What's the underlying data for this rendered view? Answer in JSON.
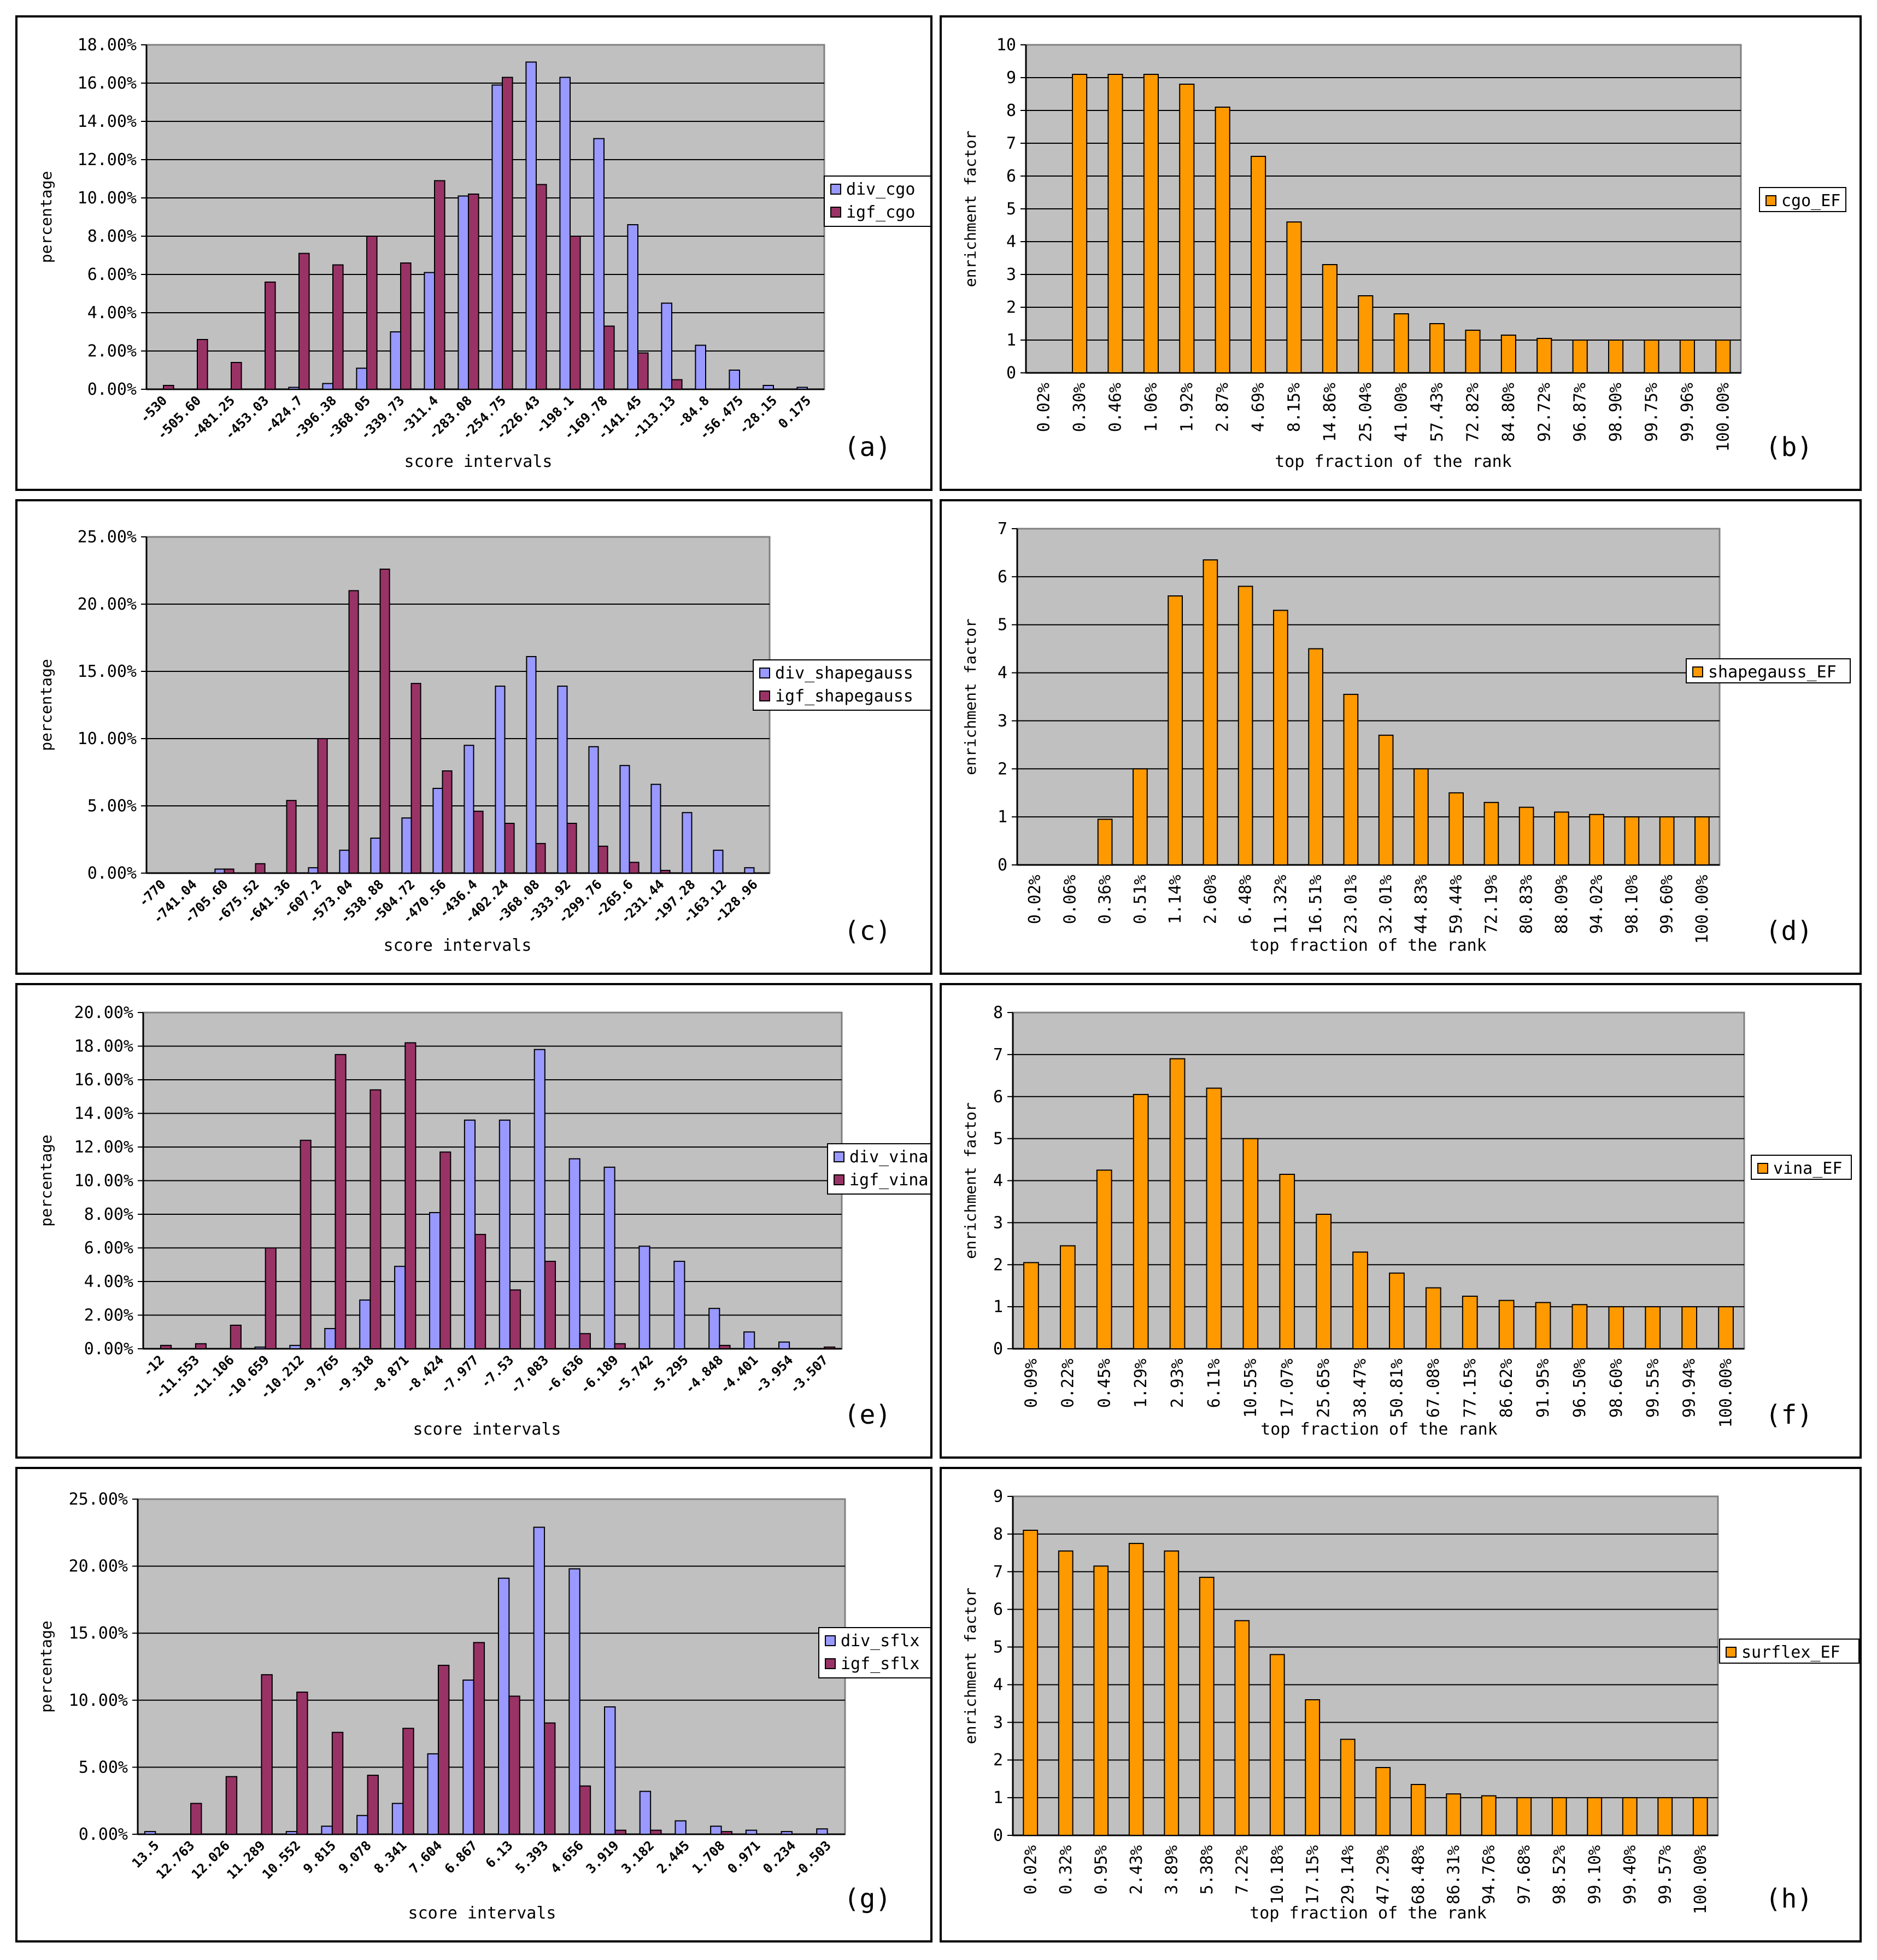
{
  "chart_data": [
    {
      "panel_label": "(a)",
      "type": "bar",
      "xlabel": "score intervals",
      "ylabel": "percentage",
      "ylim": [
        0,
        18
      ],
      "ytick_values": [
        0,
        2,
        4,
        6,
        8,
        10,
        12,
        14,
        16,
        18
      ],
      "ytick_labels": [
        "0.00%",
        "2.00%",
        "4.00%",
        "6.00%",
        "8.00%",
        "10.00%",
        "12.00%",
        "14.00%",
        "16.00%",
        "18.00%"
      ],
      "categories": [
        "-530",
        "-505.60",
        "-481.25",
        "-453.03",
        "-424.7",
        "-396.38",
        "-368.05",
        "-339.73",
        "-311.4",
        "-283.08",
        "-254.75",
        "-226.43",
        "-198.1",
        "-169.78",
        "-141.45",
        "-113.13",
        "-84.8",
        "-56.475",
        "-28.15",
        "0.175"
      ],
      "category_labels": [
        "-530",
        "-505.60",
        "-481.25",
        "-453.03",
        "-424.7",
        "-396.38",
        "-368.05",
        "-339.73",
        "-311.4",
        "-283.08",
        "-254.75",
        "-226.43",
        "-198.1",
        "-169.78",
        "-141.45",
        "-113.13",
        "-84.8",
        "-56.475",
        "-28.15",
        "0.175"
      ],
      "series": [
        {
          "name": "div_cgo",
          "color": "#9999ff",
          "values": [
            0,
            0,
            0,
            0,
            0.1,
            0.3,
            1.1,
            3.0,
            6.1,
            10.1,
            15.9,
            17.1,
            16.3,
            13.1,
            8.6,
            4.5,
            2.3,
            1.0,
            0.2,
            0.1
          ]
        },
        {
          "name": "igf_cgo",
          "color": "#993366",
          "values": [
            0.2,
            2.6,
            1.4,
            5.6,
            7.1,
            6.5,
            8.0,
            6.6,
            10.9,
            10.2,
            16.3,
            10.7,
            8.0,
            3.3,
            1.9,
            0.5,
            0,
            0,
            0,
            0
          ]
        }
      ]
    },
    {
      "panel_label": "(b)",
      "type": "bar",
      "xlabel": "top fraction of the rank",
      "ylabel": "enrichment factor",
      "ylim": [
        0,
        10
      ],
      "ytick_values": [
        0,
        1,
        2,
        3,
        4,
        5,
        6,
        7,
        8,
        9,
        10
      ],
      "ytick_labels": [
        "0",
        "1",
        "2",
        "3",
        "4",
        "5",
        "6",
        "7",
        "8",
        "9",
        "10"
      ],
      "categories": [
        "0.02%",
        "0.30%",
        "0.46%",
        "1.06%",
        "1.92%",
        "2.87%",
        "4.69%",
        "8.15%",
        "14.86%",
        "25.04%",
        "41.00%",
        "57.43%",
        "72.82%",
        "84.80%",
        "92.72%",
        "96.87%",
        "98.90%",
        "99.75%",
        "99.96%",
        "100.00%"
      ],
      "series": [
        {
          "name": "cgo_EF",
          "color": "#ff9900",
          "values": [
            0,
            9.1,
            9.1,
            9.1,
            8.8,
            8.1,
            6.6,
            4.6,
            3.3,
            2.35,
            1.8,
            1.5,
            1.3,
            1.15,
            1.05,
            1.0,
            1.0,
            1.0,
            1.0,
            1.0
          ]
        }
      ]
    },
    {
      "panel_label": "(c)",
      "type": "bar",
      "xlabel": "score intervals",
      "ylabel": "percentage",
      "ylim": [
        0,
        25
      ],
      "ytick_values": [
        0,
        5,
        10,
        15,
        20,
        25
      ],
      "ytick_labels": [
        "0.00%",
        "5.00%",
        "10.00%",
        "15.00%",
        "20.00%",
        "25.00%"
      ],
      "categories": [
        "-770",
        "-741.04",
        "-705.60",
        "-675.52",
        "-641.36",
        "-607.2",
        "-573.04",
        "-538.88",
        "-504.72",
        "-470.56",
        "-436.4",
        "-402.24",
        "-368.08",
        "-333.92",
        "-299.76",
        "-265.6",
        "-231.44",
        "-197.28",
        "-163.12",
        "-128.96"
      ],
      "category_labels": [
        "-770",
        "-741.04",
        "-705.60",
        "-675.52",
        "-641.36",
        "-607.2",
        "-573.04",
        "-538.88",
        "-504.72",
        "-470.56",
        "-436.4",
        "-402.24",
        "-368.08",
        "-333.92",
        "-299.76",
        "-265.6",
        "-231.44",
        "-197.28",
        "-163.12",
        "-128.96"
      ],
      "series": [
        {
          "name": "div_shapegauss",
          "color": "#9999ff",
          "values": [
            0,
            0,
            0.3,
            0,
            0,
            0.4,
            1.7,
            2.6,
            4.1,
            6.3,
            9.5,
            13.9,
            16.1,
            13.9,
            9.4,
            8.0,
            6.6,
            4.5,
            1.7,
            0.4
          ]
        },
        {
          "name": "igf_shapegauss",
          "color": "#993366",
          "values": [
            0,
            0,
            0.3,
            0.7,
            5.4,
            10.0,
            21.0,
            22.6,
            14.1,
            7.6,
            4.6,
            3.7,
            2.2,
            3.7,
            2.0,
            0.8,
            0.2,
            0,
            0,
            0
          ]
        }
      ]
    },
    {
      "panel_label": "(d)",
      "type": "bar",
      "xlabel": "top fraction of the rank",
      "ylabel": "enrichment factor",
      "ylim": [
        0,
        7
      ],
      "ytick_values": [
        0,
        1,
        2,
        3,
        4,
        5,
        6,
        7
      ],
      "ytick_labels": [
        "0",
        "1",
        "2",
        "3",
        "4",
        "5",
        "6",
        "7"
      ],
      "categories": [
        "0.02%",
        "0.06%",
        "0.36%",
        "0.51%",
        "1.14%",
        "2.60%",
        "6.48%",
        "11.32%",
        "16.51%",
        "23.01%",
        "32.01%",
        "44.83%",
        "59.44%",
        "72.19%",
        "80.83%",
        "88.09%",
        "94.02%",
        "98.10%",
        "99.60%",
        "100.00%"
      ],
      "series": [
        {
          "name": "shapegauss_EF",
          "color": "#ff9900",
          "values": [
            0,
            0,
            0.95,
            2.0,
            5.6,
            6.35,
            5.8,
            5.3,
            4.5,
            3.55,
            2.7,
            2.0,
            1.5,
            1.3,
            1.2,
            1.1,
            1.05,
            1.0,
            1.0,
            1.0
          ]
        }
      ]
    },
    {
      "panel_label": "(e)",
      "type": "bar",
      "xlabel": "score intervals",
      "ylabel": "percentage",
      "ylim": [
        0,
        20
      ],
      "ytick_values": [
        0,
        2,
        4,
        6,
        8,
        10,
        12,
        14,
        16,
        18,
        20
      ],
      "ytick_labels": [
        "0.00%",
        "2.00%",
        "4.00%",
        "6.00%",
        "8.00%",
        "10.00%",
        "12.00%",
        "14.00%",
        "16.00%",
        "18.00%",
        "20.00%"
      ],
      "categories": [
        "-12",
        "-11.553",
        "-11.106",
        "-10.659",
        "-10.212",
        "-9.765",
        "-9.318",
        "-8.871",
        "-8.424",
        "-7.977",
        "-7.53",
        "-7.083",
        "-6.636",
        "-6.189",
        "-5.742",
        "-5.295",
        "-4.848",
        "-4.401",
        "-3.954",
        "-3.507"
      ],
      "category_labels": [
        "-12",
        "-11.553",
        "-11.106",
        "-10.659",
        "-10.212",
        "-9.765",
        "-9.318",
        "-8.871",
        "-8.424",
        "-7.977",
        "-7.53",
        "-7.083",
        "-6.636",
        "-6.189",
        "-5.742",
        "-5.295",
        "-4.848",
        "-4.401",
        "-3.954",
        "-3.507"
      ],
      "series": [
        {
          "name": "div_vina",
          "color": "#9999ff",
          "values": [
            0,
            0,
            0,
            0.1,
            0.2,
            1.2,
            2.9,
            4.9,
            8.1,
            13.6,
            13.6,
            17.8,
            11.3,
            10.8,
            6.1,
            5.2,
            2.4,
            1.0,
            0.4,
            0
          ]
        },
        {
          "name": "igf_vina",
          "color": "#993366",
          "values": [
            0.2,
            0.3,
            1.4,
            6.0,
            12.4,
            17.5,
            15.4,
            18.2,
            11.7,
            6.8,
            3.5,
            5.2,
            0.9,
            0.3,
            0,
            0,
            0.2,
            0,
            0,
            0.1
          ]
        }
      ]
    },
    {
      "panel_label": "(f)",
      "type": "bar",
      "xlabel": "top fraction of the rank",
      "ylabel": "enrichment factor",
      "ylim": [
        0,
        8
      ],
      "ytick_values": [
        0,
        1,
        2,
        3,
        4,
        5,
        6,
        7,
        8
      ],
      "ytick_labels": [
        "0",
        "1",
        "2",
        "3",
        "4",
        "5",
        "6",
        "7",
        "8"
      ],
      "categories": [
        "0.09%",
        "0.22%",
        "0.45%",
        "1.29%",
        "2.93%",
        "6.11%",
        "10.55%",
        "17.07%",
        "25.65%",
        "38.47%",
        "50.81%",
        "67.08%",
        "77.15%",
        "86.62%",
        "91.95%",
        "96.50%",
        "98.60%",
        "99.55%",
        "99.94%",
        "100.00%"
      ],
      "series": [
        {
          "name": "vina_EF",
          "color": "#ff9900",
          "values": [
            2.05,
            2.45,
            4.25,
            6.05,
            6.9,
            6.2,
            5.0,
            4.15,
            3.2,
            2.3,
            1.8,
            1.45,
            1.25,
            1.15,
            1.1,
            1.05,
            1.0,
            1.0,
            1.0,
            1.0
          ]
        }
      ]
    },
    {
      "panel_label": "(g)",
      "type": "bar",
      "xlabel": "score intervals",
      "ylabel": "percentage",
      "ylim": [
        0,
        25
      ],
      "ytick_values": [
        0,
        5,
        10,
        15,
        20,
        25
      ],
      "ytick_labels": [
        "0.00%",
        "5.00%",
        "10.00%",
        "15.00%",
        "20.00%",
        "25.00%"
      ],
      "categories": [
        "13.5",
        "12.763",
        "12.026",
        "11.289",
        "10.552",
        "9.815",
        "9.078",
        "8.341",
        "7.604",
        "6.867",
        "6.13",
        "5.393",
        "4.656",
        "3.919",
        "3.182",
        "2.445",
        "1.708",
        "0.971",
        "0.234",
        "-0.503"
      ],
      "category_labels": [
        "13.5",
        "12.763",
        "12.026",
        "11.289",
        "10.552",
        "9.815",
        "9.078",
        "8.341",
        "7.604",
        "6.867",
        "6.13",
        "5.393",
        "4.656",
        "3.919",
        "3.182",
        "2.445",
        "1.708",
        "0.971",
        "0.234",
        "-0.503"
      ],
      "series": [
        {
          "name": "div_sflx",
          "color": "#9999ff",
          "values": [
            0.2,
            0,
            0,
            0,
            0.2,
            0.6,
            1.4,
            2.3,
            6.0,
            11.5,
            19.1,
            22.9,
            19.8,
            9.5,
            3.2,
            1.0,
            0.6,
            0.3,
            0.2,
            0.4
          ]
        },
        {
          "name": "igf_sflx",
          "color": "#993366",
          "values": [
            0,
            2.3,
            4.3,
            11.9,
            10.6,
            7.6,
            4.4,
            7.9,
            12.6,
            14.3,
            10.3,
            8.3,
            3.6,
            0.3,
            0.3,
            0,
            0.2,
            0,
            0,
            0
          ]
        }
      ]
    },
    {
      "panel_label": "(h)",
      "type": "bar",
      "xlabel": "top fraction of the rank",
      "ylabel": "enrichment factor",
      "ylim": [
        0,
        9
      ],
      "ytick_values": [
        0,
        1,
        2,
        3,
        4,
        5,
        6,
        7,
        8,
        9
      ],
      "ytick_labels": [
        "0",
        "1",
        "2",
        "3",
        "4",
        "5",
        "6",
        "7",
        "8",
        "9"
      ],
      "categories": [
        "0.02%",
        "0.32%",
        "0.95%",
        "2.43%",
        "3.89%",
        "5.38%",
        "7.22%",
        "10.18%",
        "17.15%",
        "29.14%",
        "47.29%",
        "68.48%",
        "86.31%",
        "94.76%",
        "97.68%",
        "98.52%",
        "99.10%",
        "99.40%",
        "99.57%",
        "100.00%"
      ],
      "series": [
        {
          "name": "surflex_EF",
          "color": "#ff9900",
          "values": [
            8.1,
            7.55,
            7.15,
            7.75,
            7.55,
            6.85,
            5.7,
            4.8,
            3.6,
            2.55,
            1.8,
            1.35,
            1.1,
            1.05,
            1.0,
            1.0,
            1.0,
            1.0,
            1.0,
            1.0
          ]
        }
      ]
    }
  ]
}
